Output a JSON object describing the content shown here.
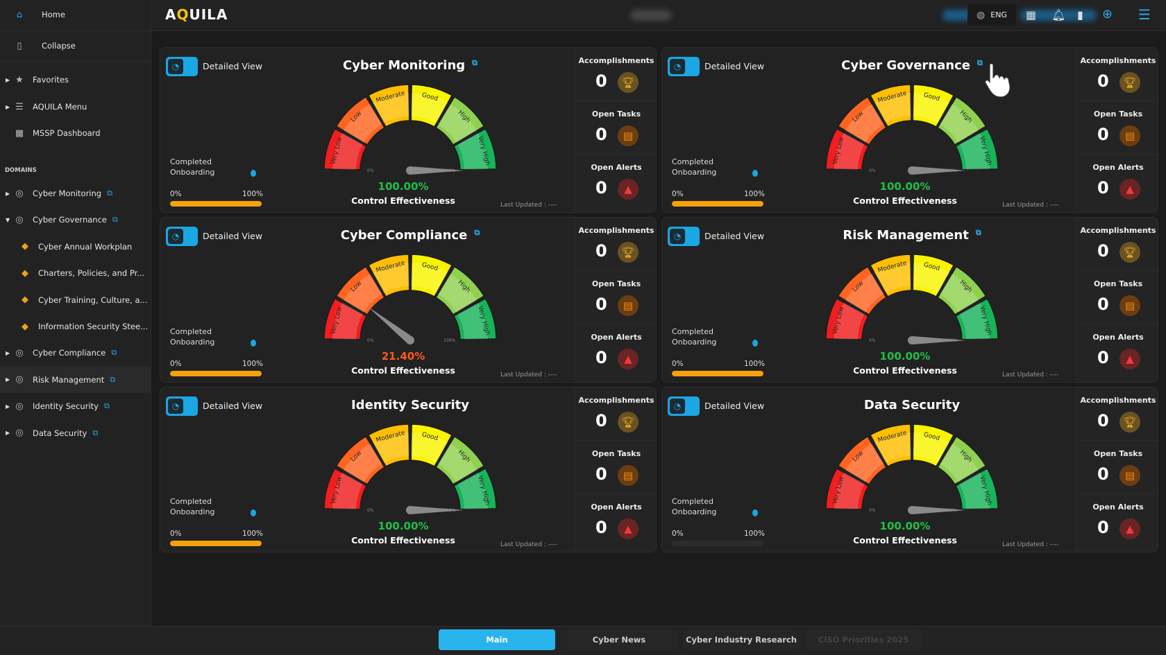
{
  "sidebar": {
    "home": "Home",
    "collapse": "Collapse",
    "favorites": "Favorites",
    "aquila_menu": "AQUILA Menu",
    "mssp": "MSSP Dashboard",
    "domains_heading": "DOMAINS",
    "domains": [
      {
        "label": "Cyber Monitoring",
        "icon": "radar-icon",
        "caret": "▸"
      },
      {
        "label": "Cyber Governance",
        "icon": "bank-icon",
        "caret": "▾"
      },
      {
        "label": "Cyber Annual Workplan",
        "icon": "diamond-icon",
        "sub": true
      },
      {
        "label": "Charters, Policies, and Pr...",
        "icon": "bolt-icon",
        "sub": true
      },
      {
        "label": "Cyber Training, Culture, a...",
        "icon": "flame-icon",
        "sub": true
      },
      {
        "label": "Information Security Stee...",
        "icon": "ring-icon",
        "sub": true
      },
      {
        "label": "Cyber Compliance",
        "icon": "shield-icon",
        "caret": "▸"
      },
      {
        "label": "Risk Management",
        "icon": "gauge-icon",
        "caret": "▸",
        "active": true
      },
      {
        "label": "Identity Security",
        "icon": "id-badge-icon",
        "caret": "▸"
      },
      {
        "label": "Data Security",
        "icon": "database-icon",
        "caret": "▸"
      }
    ]
  },
  "topbar": {
    "logo": "AQUILA",
    "lang": "ENG"
  },
  "gauge_bands": [
    "Very Low",
    "Low",
    "Moderate",
    "Good",
    "High",
    "Very High"
  ],
  "gauge_band_colors": [
    "#f01e1e",
    "#ff6420",
    "#ffbf00",
    "#f8f400",
    "#8fd14f",
    "#17b45a"
  ],
  "gauge_min": "0%",
  "gauge_max": "100%",
  "common": {
    "detailed_view": "Detailed View",
    "completed_onboarding_1": "Completed",
    "completed_onboarding_2": "Onboarding",
    "bar_min": "0%",
    "bar_max": "100%",
    "control_effectiveness": "Control Effectiveness",
    "last_updated": "Last Updated : ----",
    "accomplishments": "Accomplishments",
    "open_tasks": "Open Tasks",
    "open_alerts": "Open Alerts"
  },
  "cards": [
    {
      "title": "Cyber Monitoring",
      "external_link": true,
      "effectiveness": "100.00%",
      "value": 100,
      "color": "#1fbf4a",
      "onboarding": 100,
      "accomplishments": "0",
      "open_tasks": "0",
      "open_alerts": "0"
    },
    {
      "title": "Cyber Governance",
      "external_link": true,
      "effectiveness": "100.00%",
      "value": 100,
      "color": "#1fbf4a",
      "onboarding": 100,
      "accomplishments": "0",
      "open_tasks": "0",
      "open_alerts": "0"
    },
    {
      "title": "Cyber Compliance",
      "external_link": true,
      "effectiveness": "21.40%",
      "value": 21.4,
      "color": "#ff5a1f",
      "onboarding": 100,
      "accomplishments": "0",
      "open_tasks": "0",
      "open_alerts": "0"
    },
    {
      "title": "Risk Management",
      "external_link": true,
      "effectiveness": "100.00%",
      "value": 100,
      "color": "#1fbf4a",
      "onboarding": 100,
      "accomplishments": "0",
      "open_tasks": "0",
      "open_alerts": "0"
    },
    {
      "title": "Identity Security",
      "external_link": false,
      "effectiveness": "100.00%",
      "value": 100,
      "color": "#1fbf4a",
      "onboarding": 100,
      "accomplishments": "0",
      "open_tasks": "0",
      "open_alerts": "0"
    },
    {
      "title": "Data Security",
      "external_link": false,
      "effectiveness": "100.00%",
      "value": 100,
      "color": "#1fbf4a",
      "onboarding": 0,
      "accomplishments": "0",
      "open_tasks": "0",
      "open_alerts": "0"
    }
  ],
  "bottom_tabs": [
    {
      "label": "Main",
      "active": true
    },
    {
      "label": "Cyber News"
    },
    {
      "label": "Cyber Industry Research"
    },
    {
      "label": "CISO Priorities 2025",
      "disabled": true
    }
  ],
  "colors": {
    "accent": "#29b3ec",
    "progress": "#f5a00c"
  }
}
